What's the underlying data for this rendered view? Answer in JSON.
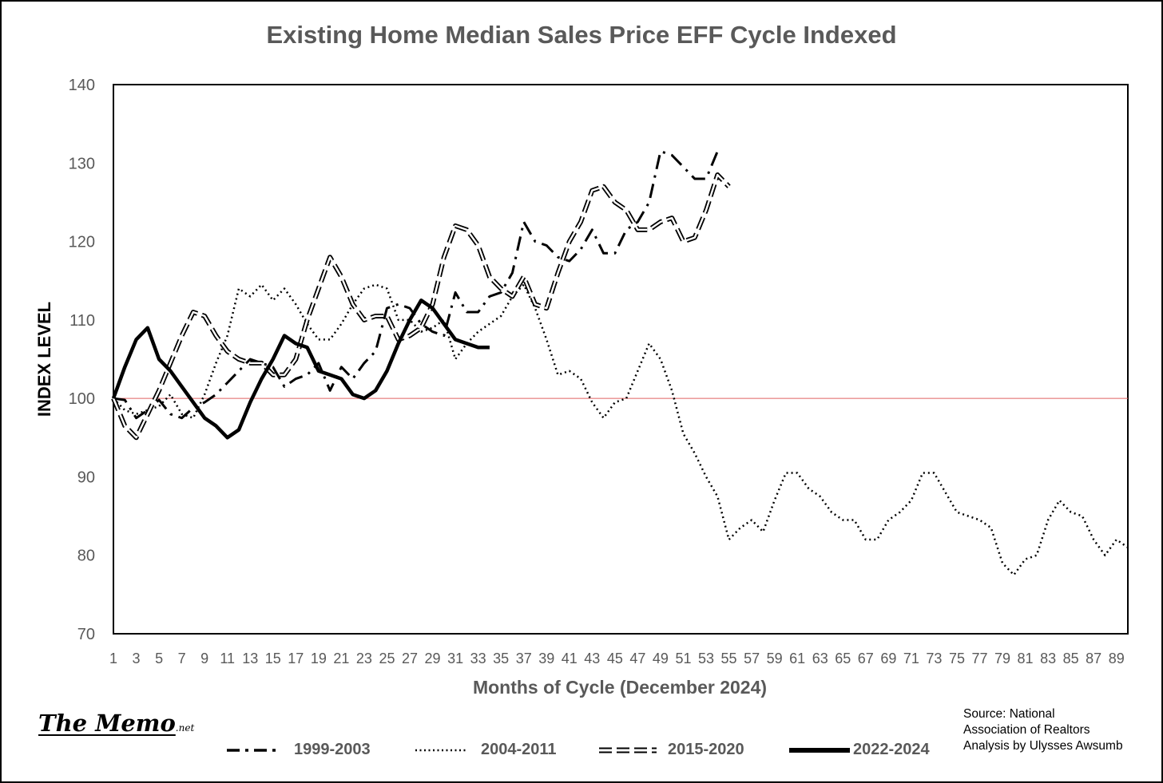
{
  "chart_data": {
    "type": "line",
    "title": "Existing Home Median Sales Price EFF Cycle Indexed",
    "xlabel": "Months of Cycle (December 2024)",
    "ylabel": "INDEX LEVEL",
    "xlim": [
      1,
      90
    ],
    "ylim": [
      70,
      140
    ],
    "yticks": [
      70,
      80,
      90,
      100,
      110,
      120,
      130,
      140
    ],
    "xticks": [
      1,
      3,
      5,
      7,
      9,
      11,
      13,
      15,
      17,
      19,
      21,
      23,
      25,
      27,
      29,
      31,
      33,
      35,
      37,
      39,
      41,
      43,
      45,
      47,
      49,
      51,
      53,
      55,
      57,
      59,
      61,
      63,
      65,
      67,
      69,
      71,
      73,
      75,
      77,
      79,
      81,
      83,
      85,
      87,
      89
    ],
    "reference_line": 100,
    "grid": false,
    "legend_position": "bottom",
    "series": [
      {
        "name": "1999-2003",
        "style": "dash-dot",
        "values": [
          100,
          99.8,
          97.5,
          98.5,
          99.8,
          98,
          97.5,
          98.8,
          99.5,
          100.5,
          102,
          103.5,
          105,
          104.5,
          104,
          101.5,
          102.5,
          103,
          104.5,
          101,
          104,
          102.5,
          104.5,
          106,
          111.5,
          112,
          111.5,
          109.5,
          108.5,
          108,
          113.5,
          111,
          111,
          113,
          113.5,
          116,
          122.5,
          120,
          119.5,
          118,
          117.5,
          119,
          121.5,
          118.5,
          118.5,
          121.5,
          122.5,
          125,
          131.5,
          131,
          129.5,
          128,
          128,
          131.5
        ]
      },
      {
        "name": "2004-2011",
        "style": "dotted",
        "values": [
          100,
          98.5,
          98,
          98.5,
          99,
          100.5,
          98,
          97.5,
          100.5,
          104.5,
          108,
          114,
          113,
          114.5,
          112.5,
          114,
          112,
          109.5,
          107.5,
          107.5,
          109.5,
          112,
          114,
          114.5,
          114,
          110,
          110,
          108.5,
          109,
          110,
          105,
          107,
          108.5,
          109.5,
          110.5,
          113,
          114.5,
          111.5,
          107.5,
          103,
          103.5,
          102.5,
          99.5,
          97.5,
          99.5,
          100,
          103.5,
          107,
          105,
          101,
          95.5,
          93,
          90,
          87.5,
          82,
          83.5,
          84.5,
          83,
          87,
          90.5,
          90.5,
          88.5,
          87.5,
          85.5,
          84.5,
          84.5,
          82,
          82,
          84.5,
          85.5,
          87,
          90.5,
          90.5,
          88,
          85.5,
          85,
          84.5,
          83.5,
          79,
          77.5,
          79.5,
          80,
          84.5,
          87,
          85.5,
          85,
          82,
          80,
          82,
          81
        ]
      },
      {
        "name": "2015-2020",
        "style": "double-dash",
        "values": [
          100,
          96.5,
          95,
          98,
          101,
          104.5,
          108,
          111,
          110.5,
          108,
          106,
          105,
          104.5,
          104.5,
          103,
          103,
          105,
          110,
          114,
          118,
          115.5,
          112,
          110,
          110.5,
          110.5,
          107.5,
          108,
          109,
          112,
          118,
          122,
          121.5,
          119.5,
          115.5,
          114,
          113,
          115.5,
          112,
          111.5,
          116,
          120,
          122.5,
          126.5,
          127,
          125,
          124,
          121.5,
          121.5,
          122.5,
          123,
          120,
          120.5,
          124,
          128.5,
          127
        ]
      },
      {
        "name": "2022-2024",
        "style": "solid-thick",
        "values": [
          100,
          104,
          107.5,
          109,
          105,
          103.5,
          101.5,
          99.5,
          97.5,
          96.5,
          95,
          96,
          99.5,
          102.5,
          105,
          108,
          107,
          106.5,
          103.5,
          103,
          102.5,
          100.5,
          100,
          101,
          103.5,
          107,
          110,
          112.5,
          111.5,
          109.5,
          107.5,
          107,
          106.5,
          106.5
        ]
      }
    ]
  },
  "footer": {
    "logo_main": "The Memo",
    "logo_suffix": ".net",
    "source_line1": "Source: National",
    "source_line2": "Association of Realtors",
    "source_line3": "Analysis by Ulysses Awsumb"
  }
}
